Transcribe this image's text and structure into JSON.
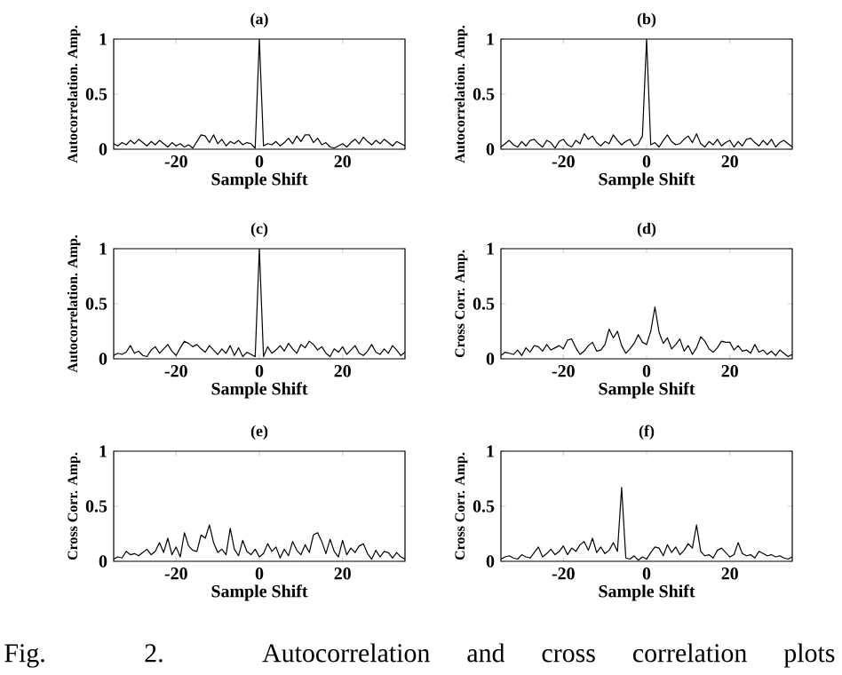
{
  "chart_data": [
    {
      "type": "line",
      "title": "(a)",
      "xlabel": "Sample Shift",
      "ylabel": "Autocorrelation. Amp.",
      "xlim": [
        -35,
        35
      ],
      "xticks": [
        -20,
        0,
        20
      ],
      "ylim": [
        0,
        1
      ],
      "yticks": [
        0,
        0.5,
        1
      ],
      "color": "#000000",
      "x": [
        -35,
        -34,
        -33,
        -32,
        -31,
        -30,
        -29,
        -28,
        -27,
        -26,
        -25,
        -24,
        -23,
        -22,
        -21,
        -20,
        -19,
        -18,
        -17,
        -16,
        -15,
        -14,
        -13,
        -12,
        -11,
        -10,
        -9,
        -8,
        -7,
        -6,
        -5,
        -4,
        -3,
        -2,
        -1,
        0,
        1,
        2,
        3,
        4,
        5,
        6,
        7,
        8,
        9,
        10,
        11,
        12,
        13,
        14,
        15,
        16,
        17,
        18,
        19,
        20,
        21,
        22,
        23,
        24,
        25,
        26,
        27,
        28,
        29,
        30,
        31,
        32,
        33,
        34,
        35
      ],
      "values": [
        0.05,
        0.03,
        0.06,
        0.04,
        0.08,
        0.05,
        0.09,
        0.06,
        0.03,
        0.07,
        0.04,
        0.08,
        0.05,
        0.02,
        0.06,
        0.03,
        0.05,
        0.02,
        0.04,
        0.01,
        0.07,
        0.13,
        0.12,
        0.06,
        0.13,
        0.05,
        0.09,
        0.03,
        0.07,
        0.05,
        0.08,
        0.04,
        0.06,
        0.05,
        0.01,
        1,
        0.03,
        0.05,
        0.04,
        0.07,
        0.03,
        0.06,
        0.1,
        0.05,
        0.12,
        0.07,
        0.13,
        0.13,
        0.06,
        0.1,
        0.04,
        0.06,
        0.02,
        0.01,
        0.03,
        0.05,
        0.02,
        0.06,
        0.09,
        0.05,
        0.11,
        0.07,
        0.04,
        0.08,
        0.05,
        0.09,
        0.06,
        0.03,
        0.07,
        0.05,
        0.03
      ]
    },
    {
      "type": "line",
      "title": "(b)",
      "xlabel": "Sample Shift",
      "ylabel": "Autocorrelation. Amp.",
      "xlim": [
        -35,
        35
      ],
      "xticks": [
        -20,
        0,
        20
      ],
      "ylim": [
        0,
        1
      ],
      "yticks": [
        0,
        0.5,
        1
      ],
      "color": "#000000",
      "x": [
        -35,
        -34,
        -33,
        -32,
        -31,
        -30,
        -29,
        -28,
        -27,
        -26,
        -25,
        -24,
        -23,
        -22,
        -21,
        -20,
        -19,
        -18,
        -17,
        -16,
        -15,
        -14,
        -13,
        -12,
        -11,
        -10,
        -9,
        -8,
        -7,
        -6,
        -5,
        -4,
        -3,
        -2,
        -1,
        0,
        1,
        2,
        3,
        4,
        5,
        6,
        7,
        8,
        9,
        10,
        11,
        12,
        13,
        14,
        15,
        16,
        17,
        18,
        19,
        20,
        21,
        22,
        23,
        24,
        25,
        26,
        27,
        28,
        29,
        30,
        31,
        32,
        33,
        34,
        35
      ],
      "values": [
        0.02,
        0.05,
        0.08,
        0.04,
        0.02,
        0.07,
        0.03,
        0.08,
        0.09,
        0.05,
        0.02,
        0.08,
        0.06,
        0.01,
        0.07,
        0.09,
        0.04,
        0.02,
        0.08,
        0.05,
        0.14,
        0.09,
        0.12,
        0.06,
        0.03,
        0.07,
        0.05,
        0.13,
        0.08,
        0.04,
        0.07,
        0.09,
        0.03,
        0.05,
        0.12,
        1,
        0.04,
        0.06,
        0.02,
        0.08,
        0.13,
        0.07,
        0.04,
        0.05,
        0.09,
        0.12,
        0.06,
        0.14,
        0.05,
        0.02,
        0.07,
        0.04,
        0.09,
        0.03,
        0.06,
        0.08,
        0.02,
        0.07,
        0.03,
        0.09,
        0.1,
        0.06,
        0.03,
        0.08,
        0.04,
        0.09,
        0.02,
        0.06,
        0.08,
        0.05,
        0.02
      ]
    },
    {
      "type": "line",
      "title": "(c)",
      "xlabel": "Sample Shift",
      "ylabel": "Autocorrelation. Amp.",
      "xlim": [
        -35,
        35
      ],
      "xticks": [
        -20,
        0,
        20
      ],
      "ylim": [
        0,
        1
      ],
      "yticks": [
        0,
        0.5,
        1
      ],
      "color": "#000000",
      "x": [
        -35,
        -34,
        -33,
        -32,
        -31,
        -30,
        -29,
        -28,
        -27,
        -26,
        -25,
        -24,
        -23,
        -22,
        -21,
        -20,
        -19,
        -18,
        -17,
        -16,
        -15,
        -14,
        -13,
        -12,
        -11,
        -10,
        -9,
        -8,
        -7,
        -6,
        -5,
        -4,
        -3,
        -2,
        -1,
        0,
        1,
        2,
        3,
        4,
        5,
        6,
        7,
        8,
        9,
        10,
        11,
        12,
        13,
        14,
        15,
        16,
        17,
        18,
        19,
        20,
        21,
        22,
        23,
        24,
        25,
        26,
        27,
        28,
        29,
        30,
        31,
        32,
        33,
        34,
        35
      ],
      "values": [
        0.03,
        0.05,
        0.04,
        0.06,
        0.12,
        0.05,
        0.07,
        0.03,
        0.02,
        0.08,
        0.11,
        0.05,
        0.09,
        0.13,
        0.07,
        0.03,
        0.1,
        0.16,
        0.14,
        0.11,
        0.13,
        0.09,
        0.06,
        0.12,
        0.08,
        0.04,
        0.09,
        0.05,
        0.12,
        0.03,
        0.1,
        0.02,
        0.06,
        0.04,
        0.02,
        1,
        0.02,
        0.11,
        0.05,
        0.08,
        0.12,
        0.07,
        0.14,
        0.09,
        0.05,
        0.13,
        0.1,
        0.16,
        0.13,
        0.08,
        0.11,
        0.05,
        0.02,
        0.09,
        0.06,
        0.11,
        0.04,
        0.08,
        0.12,
        0.05,
        0.03,
        0.07,
        0.13,
        0.06,
        0.04,
        0.09,
        0.05,
        0.12,
        0.08,
        0.03,
        0.06
      ]
    },
    {
      "type": "line",
      "title": "(d)",
      "xlabel": "Sample Shift",
      "ylabel": "Cross Corr. Amp.",
      "xlim": [
        -35,
        35
      ],
      "xticks": [
        -20,
        0,
        20
      ],
      "ylim": [
        0,
        1
      ],
      "yticks": [
        0,
        0.5,
        1
      ],
      "color": "#000000",
      "x": [
        -35,
        -34,
        -33,
        -32,
        -31,
        -30,
        -29,
        -28,
        -27,
        -26,
        -25,
        -24,
        -23,
        -22,
        -21,
        -20,
        -19,
        -18,
        -17,
        -16,
        -15,
        -14,
        -13,
        -12,
        -11,
        -10,
        -9,
        -8,
        -7,
        -6,
        -5,
        -4,
        -3,
        -2,
        -1,
        0,
        1,
        2,
        3,
        4,
        5,
        6,
        7,
        8,
        9,
        10,
        11,
        12,
        13,
        14,
        15,
        16,
        17,
        18,
        19,
        20,
        21,
        22,
        23,
        24,
        25,
        26,
        27,
        28,
        29,
        30,
        31,
        32,
        33,
        34,
        35
      ],
      "values": [
        0.03,
        0.06,
        0.05,
        0.04,
        0.08,
        0.03,
        0.1,
        0.06,
        0.12,
        0.11,
        0.07,
        0.13,
        0.08,
        0.1,
        0.12,
        0.09,
        0.17,
        0.18,
        0.1,
        0.04,
        0.07,
        0.12,
        0.15,
        0.07,
        0.08,
        0.13,
        0.27,
        0.19,
        0.25,
        0.12,
        0.05,
        0.09,
        0.14,
        0.22,
        0.15,
        0.13,
        0.25,
        0.47,
        0.24,
        0.14,
        0.19,
        0.09,
        0.13,
        0.18,
        0.07,
        0.12,
        0.04,
        0.1,
        0.2,
        0.16,
        0.09,
        0.06,
        0.1,
        0.16,
        0.15,
        0.15,
        0.08,
        0.12,
        0.07,
        0.08,
        0.05,
        0.13,
        0.06,
        0.08,
        0.04,
        0.07,
        0.03,
        0.08,
        0.05,
        0.02,
        0.04
      ]
    },
    {
      "type": "line",
      "title": "(e)",
      "xlabel": "Sample Shift",
      "ylabel": "Cross Corr. Amp.",
      "xlim": [
        -35,
        35
      ],
      "xticks": [
        -20,
        0,
        20
      ],
      "ylim": [
        0,
        1
      ],
      "yticks": [
        0,
        0.5,
        1
      ],
      "color": "#000000",
      "annotations": [
        "Fig. 2. Autocorrelation and cross correlation plots"
      ],
      "x": [
        -35,
        -34,
        -33,
        -32,
        -31,
        -30,
        -29,
        -28,
        -27,
        -26,
        -25,
        -24,
        -23,
        -22,
        -21,
        -20,
        -19,
        -18,
        -17,
        -16,
        -15,
        -14,
        -13,
        -12,
        -11,
        -10,
        -9,
        -8,
        -7,
        -6,
        -5,
        -4,
        -3,
        -2,
        -1,
        0,
        1,
        2,
        3,
        4,
        5,
        6,
        7,
        8,
        9,
        10,
        11,
        12,
        13,
        14,
        15,
        16,
        17,
        18,
        19,
        20,
        21,
        22,
        23,
        24,
        25,
        26,
        27,
        28,
        29,
        30,
        31,
        32,
        33,
        34,
        35
      ],
      "values": [
        0.02,
        0.04,
        0.03,
        0.09,
        0.06,
        0.07,
        0.05,
        0.08,
        0.11,
        0.06,
        0.09,
        0.17,
        0.08,
        0.21,
        0.06,
        0.13,
        0.04,
        0.26,
        0.14,
        0.1,
        0.09,
        0.24,
        0.21,
        0.33,
        0.17,
        0.08,
        0.11,
        0.06,
        0.3,
        0.11,
        0.05,
        0.19,
        0.09,
        0.06,
        0.11,
        0.04,
        0.07,
        0.16,
        0.09,
        0.13,
        0.03,
        0.11,
        0.05,
        0.18,
        0.1,
        0.06,
        0.15,
        0.08,
        0.24,
        0.26,
        0.18,
        0.07,
        0.2,
        0.09,
        0.04,
        0.19,
        0.06,
        0.12,
        0.08,
        0.14,
        0.16,
        0.07,
        0.02,
        0.1,
        0.04,
        0.09,
        0.08,
        0.03,
        0.08,
        0.04,
        0.02
      ]
    },
    {
      "type": "line",
      "title": "(f)",
      "xlabel": "Sample Shift",
      "ylabel": "Cross Corr. Amp.",
      "xlim": [
        -35,
        35
      ],
      "xticks": [
        -20,
        0,
        20
      ],
      "ylim": [
        0,
        1
      ],
      "yticks": [
        0,
        0.5,
        1
      ],
      "color": "#000000",
      "x": [
        -35,
        -34,
        -33,
        -32,
        -31,
        -30,
        -29,
        -28,
        -27,
        -26,
        -25,
        -24,
        -23,
        -22,
        -21,
        -20,
        -19,
        -18,
        -17,
        -16,
        -15,
        -14,
        -13,
        -12,
        -11,
        -10,
        -9,
        -8,
        -7,
        -6,
        -5,
        -4,
        -3,
        -2,
        -1,
        0,
        1,
        2,
        3,
        4,
        5,
        6,
        7,
        8,
        9,
        10,
        11,
        12,
        13,
        14,
        15,
        16,
        17,
        18,
        19,
        20,
        21,
        22,
        23,
        24,
        25,
        26,
        27,
        28,
        29,
        30,
        31,
        32,
        33,
        34,
        35
      ],
      "values": [
        0.02,
        0.04,
        0.05,
        0.03,
        0.02,
        0.06,
        0.04,
        0.03,
        0.08,
        0.13,
        0.04,
        0.07,
        0.11,
        0.06,
        0.09,
        0.14,
        0.06,
        0.12,
        0.09,
        0.15,
        0.18,
        0.1,
        0.21,
        0.08,
        0.13,
        0.07,
        0.1,
        0.17,
        0.09,
        0.67,
        0.03,
        0.02,
        0.05,
        0.01,
        0.04,
        0.02,
        0.08,
        0.13,
        0.12,
        0.05,
        0.15,
        0.08,
        0.13,
        0.06,
        0.1,
        0.16,
        0.12,
        0.33,
        0.09,
        0.05,
        0.06,
        0.03,
        0.1,
        0.12,
        0.08,
        0.04,
        0.06,
        0.17,
        0.07,
        0.05,
        0.06,
        0.03,
        0.09,
        0.07,
        0.05,
        0.06,
        0.04,
        0.05,
        0.03,
        0.02,
        0.04
      ]
    }
  ]
}
